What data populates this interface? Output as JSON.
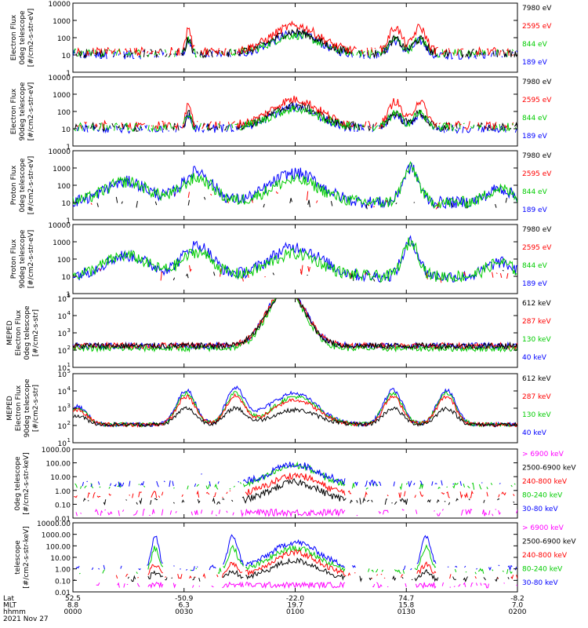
{
  "chart_data": [
    {
      "type": "line",
      "ylabel_lines": [
        "Electron Flux",
        "0deg telescope",
        "[#/cm2-s-str-eV]"
      ],
      "yscale": "log",
      "ylim": [
        1,
        10000
      ],
      "yticks": [
        1,
        10,
        100,
        1000,
        10000
      ],
      "ytick_labels": [
        "1",
        "10",
        "100",
        "1000",
        "10000"
      ],
      "legend": [
        {
          "label": "7980 eV",
          "color": "#000000"
        },
        {
          "label": "2595 eV",
          "color": "#ff0000"
        },
        {
          "label": "844 eV",
          "color": "#00cc00"
        },
        {
          "label": "189 eV",
          "color": "#0000ff"
        }
      ]
    },
    {
      "type": "line",
      "ylabel_lines": [
        "Electron Flux",
        "90deg telescope",
        "[#/cm2-s-str-eV]"
      ],
      "yscale": "log",
      "ylim": [
        1,
        10000
      ],
      "yticks": [
        1,
        10,
        100,
        1000,
        10000
      ],
      "ytick_labels": [
        "1",
        "10",
        "100",
        "1000",
        "10000"
      ],
      "legend": [
        {
          "label": "7980 eV",
          "color": "#000000"
        },
        {
          "label": "2595 eV",
          "color": "#ff0000"
        },
        {
          "label": "844 eV",
          "color": "#00cc00"
        },
        {
          "label": "189 eV",
          "color": "#0000ff"
        }
      ]
    },
    {
      "type": "line",
      "ylabel_lines": [
        "Proton Flux",
        "0deg telescope",
        "[#/cm2-s-str-eV]"
      ],
      "yscale": "log",
      "ylim": [
        1,
        10000
      ],
      "yticks": [
        1,
        10,
        100,
        1000,
        10000
      ],
      "ytick_labels": [
        "1",
        "10",
        "100",
        "1000",
        "10000"
      ],
      "legend": [
        {
          "label": "7980 eV",
          "color": "#000000"
        },
        {
          "label": "2595 eV",
          "color": "#ff0000"
        },
        {
          "label": "844 eV",
          "color": "#00cc00"
        },
        {
          "label": "189 eV",
          "color": "#0000ff"
        }
      ]
    },
    {
      "type": "line",
      "ylabel_lines": [
        "Proton Flux",
        "90deg telescope",
        "[#/cm2-s-str-eV]"
      ],
      "yscale": "log",
      "ylim": [
        1,
        10000
      ],
      "yticks": [
        1,
        10,
        100,
        1000,
        10000
      ],
      "ytick_labels": [
        "1",
        "10",
        "100",
        "1000",
        "10000"
      ],
      "legend": [
        {
          "label": "7980 eV",
          "color": "#000000"
        },
        {
          "label": "2595 eV",
          "color": "#ff0000"
        },
        {
          "label": "844 eV",
          "color": "#00cc00"
        },
        {
          "label": "189 eV",
          "color": "#0000ff"
        }
      ]
    },
    {
      "type": "line",
      "ylabel_lines": [
        "MEPED",
        "Electron Flux",
        "0deg telescope",
        "[#/cm2-s-str]"
      ],
      "yscale": "log",
      "ylim": [
        10,
        100000
      ],
      "yticks": [
        10,
        100,
        1000,
        10000,
        100000
      ],
      "ytick_labels": [
        "10",
        "10",
        "10",
        "10",
        "10"
      ],
      "ytick_exps": [
        "1",
        "2",
        "3",
        "4",
        "5"
      ],
      "legend": [
        {
          "label": "612 keV",
          "color": "#000000"
        },
        {
          "label": "287 keV",
          "color": "#ff0000"
        },
        {
          "label": "130 keV",
          "color": "#00cc00"
        },
        {
          "label": "40 keV",
          "color": "#0000ff"
        }
      ]
    },
    {
      "type": "line",
      "ylabel_lines": [
        "MEPED",
        "Electron Flux",
        "90deg telescope",
        "[#/cm2-s-str]"
      ],
      "yscale": "log",
      "ylim": [
        10,
        100000
      ],
      "yticks": [
        10,
        100,
        1000,
        10000,
        100000
      ],
      "ytick_labels": [
        "10",
        "10",
        "10",
        "10",
        "10"
      ],
      "ytick_exps": [
        "1",
        "2",
        "3",
        "4",
        "5"
      ],
      "legend": [
        {
          "label": "612 keV",
          "color": "#000000"
        },
        {
          "label": "287 keV",
          "color": "#ff0000"
        },
        {
          "label": "130 keV",
          "color": "#00cc00"
        },
        {
          "label": "40 keV",
          "color": "#0000ff"
        }
      ]
    },
    {
      "type": "line",
      "ylabel_lines": [
        "0deg telescope",
        "[#/cm2-s-str-keV]"
      ],
      "yscale": "log",
      "ylim": [
        0.01,
        1000
      ],
      "yticks": [
        0.01,
        0.1,
        1,
        10,
        100,
        1000
      ],
      "ytick_labels": [
        "0.01",
        "0.10",
        "1.00",
        "10.00",
        "100.00",
        "1000.00"
      ],
      "legend": [
        {
          "label": "> 6900 keV",
          "color": "#ff00ff"
        },
        {
          "label": "2500-6900 keV",
          "color": "#000000"
        },
        {
          "label": "240-800 keV",
          "color": "#ff0000"
        },
        {
          "label": "80-240 keV",
          "color": "#00cc00"
        },
        {
          "label": "30-80 keV",
          "color": "#0000ff"
        }
      ]
    },
    {
      "type": "line",
      "ylabel_lines": [
        "telescope",
        "[#/cm2-s-str-keV]"
      ],
      "yscale": "log",
      "ylim": [
        0.01,
        10000
      ],
      "yticks": [
        0.01,
        0.1,
        1,
        10,
        100,
        1000,
        10000
      ],
      "ytick_labels": [
        "0.01",
        "0.10",
        "1.00",
        "10.00",
        "100.00",
        "1000.00",
        "10000.00"
      ],
      "legend": [
        {
          "label": "> 6900 keV",
          "color": "#ff00ff"
        },
        {
          "label": "2500-6900 keV",
          "color": "#000000"
        },
        {
          "label": "240-800 keV",
          "color": "#ff0000"
        },
        {
          "label": "80-240 keV",
          "color": "#00cc00"
        },
        {
          "label": "30-80 keV",
          "color": "#0000ff"
        }
      ]
    }
  ],
  "x_axis": {
    "row_labels": [
      "Lat",
      "MLT",
      "hhmm"
    ],
    "ticks": [
      {
        "lat": "52.5",
        "mlt": "8.8",
        "hhmm": "0000"
      },
      {
        "lat": "-50.9",
        "mlt": "6.3",
        "hhmm": "0030"
      },
      {
        "lat": "-22.0",
        "mlt": "19.7",
        "hhmm": "0100"
      },
      {
        "lat": "74.7",
        "mlt": "15.8",
        "hhmm": "0130"
      },
      {
        "lat": "-8.2",
        "mlt": "7.0",
        "hhmm": "0200"
      }
    ],
    "date": "2021 Nov 27"
  }
}
